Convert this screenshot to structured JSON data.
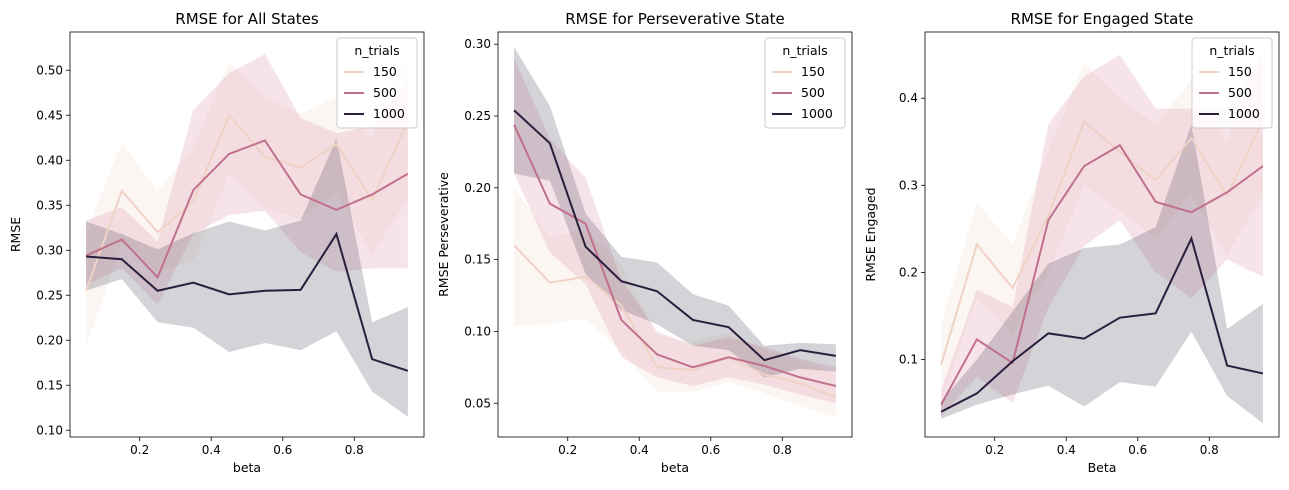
{
  "chart_data": [
    {
      "type": "line",
      "title": "RMSE for All States",
      "xlabel": "beta",
      "ylabel": "RMSE",
      "xlim": [
        0.005,
        0.995
      ],
      "ylim": [
        0.0925,
        0.5425
      ],
      "xticks": [
        0.2,
        0.4,
        0.6,
        0.8
      ],
      "yticks": [
        0.1,
        0.15,
        0.2,
        0.25,
        0.3,
        0.35,
        0.4,
        0.45,
        0.5
      ],
      "ytick_decimals": 2,
      "x": [
        0.05,
        0.15,
        0.25,
        0.35,
        0.45,
        0.55,
        0.65,
        0.75,
        0.85,
        0.95
      ],
      "legend": {
        "title": "n_trials",
        "position": "upper right"
      },
      "series": [
        {
          "name": "150",
          "color": "#f0d1c5",
          "band_color": "#f5ddd4",
          "band_alpha": 0.28,
          "values": [
            0.255,
            0.366,
            0.32,
            0.354,
            0.45,
            0.404,
            0.392,
            0.418,
            0.356,
            0.443
          ],
          "lower": [
            0.193,
            0.308,
            0.276,
            0.288,
            0.385,
            0.346,
            0.335,
            0.365,
            0.295,
            0.358
          ],
          "upper": [
            0.32,
            0.42,
            0.366,
            0.414,
            0.51,
            0.47,
            0.452,
            0.47,
            0.424,
            0.527
          ]
        },
        {
          "name": "500",
          "color": "#c1708e",
          "band_color": "#d6869f",
          "band_alpha": 0.22,
          "values": [
            0.294,
            0.312,
            0.27,
            0.367,
            0.407,
            0.422,
            0.362,
            0.345,
            0.362,
            0.385
          ],
          "lower": [
            0.262,
            0.28,
            0.24,
            0.318,
            0.339,
            0.344,
            0.298,
            0.276,
            0.28,
            0.28
          ],
          "upper": [
            0.333,
            0.348,
            0.31,
            0.456,
            0.497,
            0.518,
            0.447,
            0.43,
            0.438,
            0.488
          ]
        },
        {
          "name": "1000",
          "color": "#2a1e3d",
          "band_color": "#4a4658",
          "band_alpha": 0.24,
          "values": [
            0.293,
            0.29,
            0.255,
            0.264,
            0.251,
            0.255,
            0.256,
            0.318,
            0.179,
            0.166
          ],
          "lower": [
            0.255,
            0.268,
            0.22,
            0.214,
            0.187,
            0.197,
            0.189,
            0.21,
            0.143,
            0.115
          ],
          "upper": [
            0.332,
            0.318,
            0.301,
            0.319,
            0.332,
            0.322,
            0.333,
            0.424,
            0.22,
            0.237
          ]
        }
      ]
    },
    {
      "type": "line",
      "title": "RMSE for Perseverative State",
      "xlabel": "beta",
      "ylabel": "RMSE Perseverative",
      "xlim": [
        0.005,
        0.995
      ],
      "ylim": [
        0.0265,
        0.3085
      ],
      "xticks": [
        0.2,
        0.4,
        0.6,
        0.8
      ],
      "yticks": [
        0.05,
        0.1,
        0.15,
        0.2,
        0.25,
        0.3
      ],
      "ytick_decimals": 2,
      "x": [
        0.05,
        0.15,
        0.25,
        0.35,
        0.45,
        0.55,
        0.65,
        0.75,
        0.85,
        0.95
      ],
      "legend": {
        "title": "n_trials",
        "position": "upper right"
      },
      "series": [
        {
          "name": "150",
          "color": "#f0d1c5",
          "band_color": "#f5ddd4",
          "band_alpha": 0.28,
          "values": [
            0.16,
            0.134,
            0.138,
            0.118,
            0.075,
            0.073,
            0.082,
            0.07,
            0.064,
            0.054
          ],
          "lower": [
            0.104,
            0.105,
            0.109,
            0.086,
            0.058,
            0.058,
            0.065,
            0.057,
            0.048,
            0.04
          ],
          "upper": [
            0.2,
            0.166,
            0.171,
            0.146,
            0.097,
            0.093,
            0.099,
            0.087,
            0.08,
            0.071
          ]
        },
        {
          "name": "500",
          "color": "#c1708e",
          "band_color": "#d6869f",
          "band_alpha": 0.22,
          "values": [
            0.244,
            0.189,
            0.175,
            0.108,
            0.084,
            0.075,
            0.082,
            0.076,
            0.068,
            0.062
          ],
          "lower": [
            0.21,
            0.155,
            0.133,
            0.082,
            0.068,
            0.062,
            0.068,
            0.063,
            0.056,
            0.05
          ],
          "upper": [
            0.29,
            0.234,
            0.207,
            0.136,
            0.1,
            0.09,
            0.096,
            0.089,
            0.081,
            0.075
          ]
        },
        {
          "name": "1000",
          "color": "#2a1e3d",
          "band_color": "#4a4658",
          "band_alpha": 0.24,
          "values": [
            0.254,
            0.231,
            0.159,
            0.135,
            0.128,
            0.108,
            0.103,
            0.08,
            0.087,
            0.083
          ],
          "lower": [
            0.21,
            0.205,
            0.14,
            0.115,
            0.105,
            0.09,
            0.087,
            0.068,
            0.074,
            0.072
          ],
          "upper": [
            0.298,
            0.257,
            0.182,
            0.152,
            0.148,
            0.126,
            0.118,
            0.09,
            0.092,
            0.091
          ]
        }
      ]
    },
    {
      "type": "line",
      "title": "RMSE for Engaged State",
      "xlabel": "Beta",
      "ylabel": "RMSE Engaged",
      "xlim": [
        0.005,
        0.995
      ],
      "ylim": [
        0.011,
        0.476
      ],
      "xticks": [
        0.2,
        0.4,
        0.6,
        0.8
      ],
      "yticks": [
        0.1,
        0.2,
        0.3,
        0.4
      ],
      "ytick_decimals": 1,
      "x": [
        0.05,
        0.15,
        0.25,
        0.35,
        0.45,
        0.55,
        0.65,
        0.75,
        0.85,
        0.95
      ],
      "legend": {
        "title": "n_trials",
        "position": "upper right"
      },
      "series": [
        {
          "name": "150",
          "color": "#f0d1c5",
          "band_color": "#f5ddd4",
          "band_alpha": 0.28,
          "values": [
            0.094,
            0.232,
            0.182,
            0.265,
            0.373,
            0.338,
            0.306,
            0.354,
            0.288,
            0.375
          ],
          "lower": [
            0.05,
            0.17,
            0.13,
            0.2,
            0.3,
            0.27,
            0.24,
            0.29,
            0.22,
            0.29
          ],
          "upper": [
            0.14,
            0.28,
            0.232,
            0.34,
            0.44,
            0.4,
            0.37,
            0.42,
            0.35,
            0.46
          ]
        },
        {
          "name": "500",
          "color": "#c1708e",
          "band_color": "#d6869f",
          "band_alpha": 0.22,
          "values": [
            0.048,
            0.123,
            0.096,
            0.26,
            0.322,
            0.346,
            0.281,
            0.269,
            0.292,
            0.322
          ],
          "lower": [
            0.035,
            0.08,
            0.05,
            0.16,
            0.23,
            0.26,
            0.2,
            0.17,
            0.215,
            0.195
          ],
          "upper": [
            0.065,
            0.18,
            0.16,
            0.37,
            0.425,
            0.45,
            0.388,
            0.388,
            0.387,
            0.448
          ]
        },
        {
          "name": "1000",
          "color": "#2a1e3d",
          "band_color": "#4a4658",
          "band_alpha": 0.24,
          "values": [
            0.04,
            0.061,
            0.098,
            0.13,
            0.124,
            0.148,
            0.153,
            0.239,
            0.093,
            0.084
          ],
          "lower": [
            0.032,
            0.048,
            0.06,
            0.07,
            0.046,
            0.074,
            0.069,
            0.132,
            0.058,
            0.027
          ],
          "upper": [
            0.052,
            0.1,
            0.155,
            0.21,
            0.228,
            0.232,
            0.252,
            0.37,
            0.135,
            0.164
          ]
        }
      ]
    }
  ]
}
